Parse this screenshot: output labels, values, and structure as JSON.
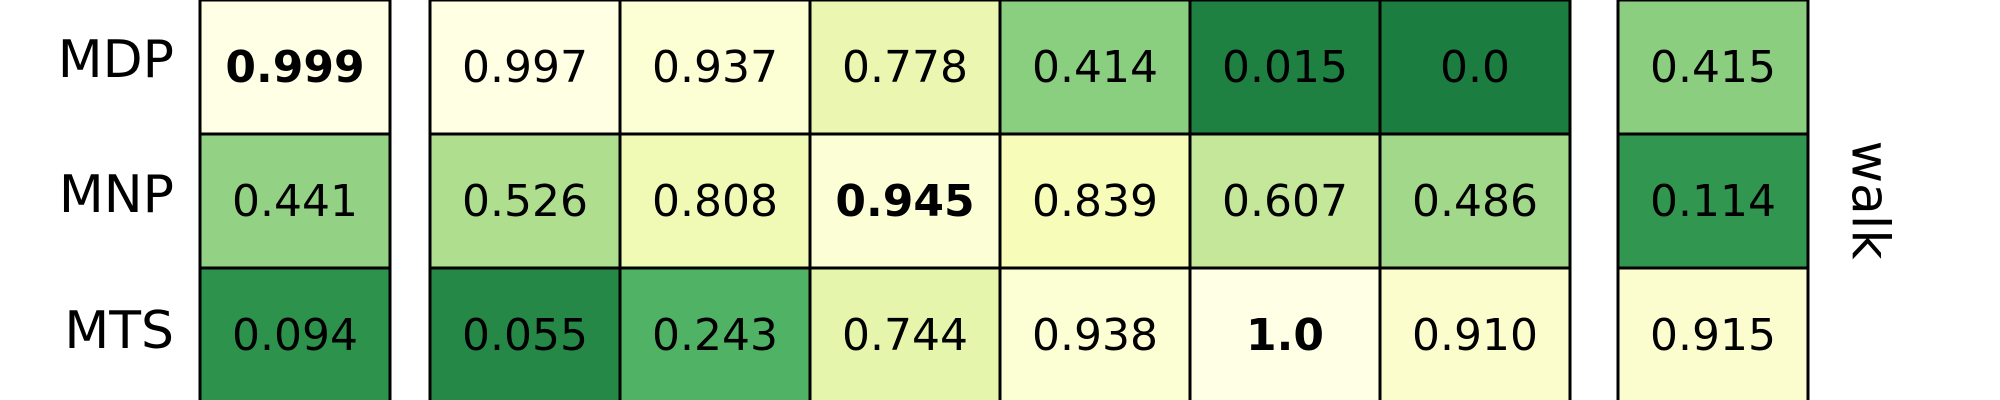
{
  "chart_data": {
    "type": "heatmap",
    "colormap": "YlGn",
    "vmin": 0,
    "vmax": 1,
    "row_labels": [
      "MDP",
      "MNP",
      "MTS"
    ],
    "facet_label": "walk",
    "blocks": [
      {
        "values": [
          [
            0.999
          ],
          [
            0.441
          ],
          [
            0.094
          ]
        ],
        "labels": [
          [
            "0.999"
          ],
          [
            "0.441"
          ],
          [
            "0.094"
          ]
        ]
      },
      {
        "values": [
          [
            0.997,
            0.937,
            0.778,
            0.414,
            0.015,
            0.0
          ],
          [
            0.526,
            0.808,
            0.945,
            0.839,
            0.607,
            0.486
          ],
          [
            0.055,
            0.243,
            0.744,
            0.938,
            1.0,
            0.91
          ]
        ],
        "labels": [
          [
            "0.997",
            "0.937",
            "0.778",
            "0.414",
            "0.015",
            "0.0"
          ],
          [
            "0.526",
            "0.808",
            "0.945",
            "0.839",
            "0.607",
            "0.486"
          ],
          [
            "0.055",
            "0.243",
            "0.744",
            "0.938",
            "1.0",
            "0.910"
          ]
        ]
      },
      {
        "values": [
          [
            0.415
          ],
          [
            0.114
          ],
          [
            0.915
          ]
        ],
        "labels": [
          [
            "0.415"
          ],
          [
            "0.114"
          ],
          [
            "0.915"
          ]
        ]
      }
    ],
    "bold_cells": [
      {
        "block": 0,
        "row": 0,
        "col": 0
      },
      {
        "block": 1,
        "row": 1,
        "col": 2
      },
      {
        "block": 1,
        "row": 2,
        "col": 4
      }
    ]
  }
}
